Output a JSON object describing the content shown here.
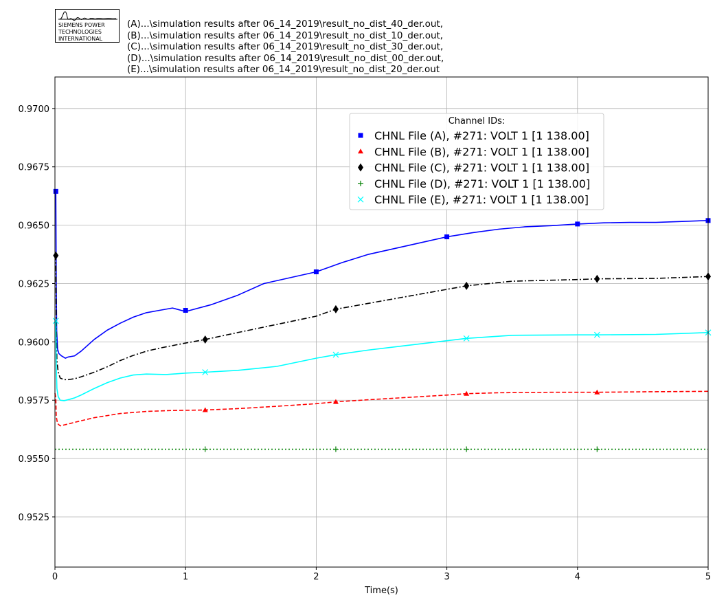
{
  "logo": {
    "text": "SIEMENS POWER\nTECHNOLOGIES\nINTERNATIONAL"
  },
  "file_list": [
    "(A)...\\simulation results after 06_14_2019\\result_no_dist_40_der.out,",
    "(B)...\\simulation results after 06_14_2019\\result_no_dist_10_der.out,",
    "(C)...\\simulation results after 06_14_2019\\result_no_dist_30_der.out,",
    "(D)...\\simulation results after 06_14_2019\\result_no_dist_00_der.out,",
    "(E)...\\simulation results after 06_14_2019\\result_no_dist_20_der.out"
  ],
  "chart_data": {
    "type": "line",
    "xlabel": "Time(s)",
    "ylabel": "",
    "xlim": [
      0,
      5
    ],
    "ylim": [
      0.95035,
      0.97135
    ],
    "xticks": [
      0,
      1,
      2,
      3,
      4,
      5
    ],
    "yticks": [
      0.9525,
      0.955,
      0.9575,
      0.96,
      0.9625,
      0.965,
      0.9675,
      0.97
    ],
    "ytick_labels": [
      "0.9525",
      "0.9550",
      "0.9575",
      "0.9600",
      "0.9625",
      "0.9650",
      "0.9675",
      "0.9700"
    ],
    "grid": true,
    "legend": {
      "title": "Channel IDs:",
      "placement": "upper-right"
    },
    "series": [
      {
        "name": "CHNL File (A), #271: VOLT 1 [1 138.00]",
        "color": "#0000ff",
        "dash": "solid",
        "marker": "square",
        "x": [
          0,
          0.0067,
          0.01,
          0.0133,
          0.02,
          0.03,
          0.05,
          0.08,
          0.1,
          0.15,
          0.2,
          0.3,
          0.4,
          0.5,
          0.6,
          0.7,
          0.8,
          0.9,
          1.0,
          1.2,
          1.4,
          1.6,
          1.8,
          2.0,
          2.2,
          2.4,
          2.6,
          2.8,
          3.0,
          3.2,
          3.4,
          3.6,
          3.8,
          4.0,
          4.2,
          4.4,
          4.6,
          4.8,
          5.0
        ],
        "y": [
          0.9664,
          0.9664,
          0.9625,
          0.9605,
          0.9597,
          0.9595,
          0.9594,
          0.9593,
          0.95935,
          0.9594,
          0.9596,
          0.9601,
          0.9605,
          0.9608,
          0.96106,
          0.96125,
          0.96135,
          0.96145,
          0.9613,
          0.9616,
          0.962,
          0.9625,
          0.96275,
          0.963,
          0.9634,
          0.96375,
          0.964,
          0.96425,
          0.9645,
          0.96468,
          0.96483,
          0.96493,
          0.96498,
          0.96505,
          0.9651,
          0.96512,
          0.96512,
          0.96516,
          0.9652
        ],
        "marker_x": [
          0.0067,
          1.0,
          2.0,
          3.0,
          4.0,
          5.0
        ],
        "marker_y": [
          0.96645,
          0.96135,
          0.963,
          0.9645,
          0.96505,
          0.9652
        ]
      },
      {
        "name": "CHNL File (B), #271: VOLT 1 [1 138.00]",
        "color": "#ff0000",
        "dash": "dashed",
        "marker": "triangle",
        "x": [
          0,
          0.0067,
          0.01,
          0.02,
          0.04,
          0.07,
          0.1,
          0.15,
          0.2,
          0.3,
          0.5,
          0.7,
          0.9,
          1.15,
          1.4,
          1.7,
          2.0,
          2.15,
          2.4,
          2.7,
          3.0,
          3.15,
          3.4,
          3.8,
          4.15,
          4.5,
          5.0
        ],
        "y": [
          0.9578,
          0.9576,
          0.9568,
          0.9565,
          0.9564,
          0.95644,
          0.95648,
          0.95655,
          0.95662,
          0.95675,
          0.95693,
          0.95702,
          0.95706,
          0.95708,
          0.95714,
          0.95724,
          0.95735,
          0.95743,
          0.95752,
          0.95762,
          0.95772,
          0.95778,
          0.95782,
          0.95784,
          0.95784,
          0.95786,
          0.95788
        ],
        "marker_x": [
          1.15,
          2.15,
          3.15,
          4.15
        ],
        "marker_y": [
          0.95708,
          0.95743,
          0.95778,
          0.95784
        ]
      },
      {
        "name": "CHNL File (C), #271: VOLT 1 [1 138.00]",
        "color": "#000000",
        "dash": "dashdot",
        "marker": "diamond",
        "x": [
          0,
          0.0067,
          0.01,
          0.015,
          0.025,
          0.04,
          0.07,
          0.1,
          0.15,
          0.2,
          0.3,
          0.4,
          0.5,
          0.6,
          0.7,
          0.8,
          1.0,
          1.15,
          1.4,
          1.7,
          2.0,
          2.15,
          2.4,
          2.7,
          3.0,
          3.15,
          3.5,
          4.0,
          4.15,
          4.6,
          5.0
        ],
        "y": [
          0.9637,
          0.9637,
          0.961,
          0.9592,
          0.9587,
          0.95845,
          0.95838,
          0.95838,
          0.95842,
          0.9585,
          0.9587,
          0.95893,
          0.9592,
          0.95942,
          0.9596,
          0.95973,
          0.95995,
          0.9601,
          0.9604,
          0.96075,
          0.9611,
          0.9614,
          0.96165,
          0.96195,
          0.96225,
          0.9624,
          0.9626,
          0.96267,
          0.9627,
          0.96272,
          0.9628
        ],
        "marker_x": [
          0.0067,
          1.15,
          2.15,
          3.15,
          4.15,
          5.0
        ],
        "marker_y": [
          0.9637,
          0.9601,
          0.9614,
          0.9624,
          0.9627,
          0.9628
        ]
      },
      {
        "name": "CHNL File (D), #271: VOLT 1 [1 138.00]",
        "color": "#008000",
        "dash": "dotted",
        "marker": "plus",
        "x": [
          0,
          5.0
        ],
        "y": [
          0.9554,
          0.9554
        ],
        "marker_x": [
          1.15,
          2.15,
          3.15,
          4.15
        ],
        "marker_y": [
          0.9554,
          0.9554,
          0.9554,
          0.9554
        ]
      },
      {
        "name": "CHNL File (E), #271: VOLT 1 [1 138.00]",
        "color": "#00ffff",
        "dash": "solid",
        "marker": "x",
        "x": [
          0,
          0.0067,
          0.01,
          0.015,
          0.025,
          0.04,
          0.07,
          0.1,
          0.15,
          0.2,
          0.3,
          0.4,
          0.5,
          0.6,
          0.7,
          0.85,
          1.0,
          1.15,
          1.4,
          1.7,
          2.0,
          2.15,
          2.4,
          2.7,
          3.0,
          3.15,
          3.5,
          4.0,
          4.15,
          4.6,
          5.0
        ],
        "y": [
          0.9609,
          0.9609,
          0.959,
          0.958,
          0.95765,
          0.9575,
          0.95748,
          0.95752,
          0.9576,
          0.95772,
          0.958,
          0.95825,
          0.95845,
          0.95858,
          0.95862,
          0.9586,
          0.95866,
          0.9587,
          0.95878,
          0.95895,
          0.9593,
          0.95945,
          0.95965,
          0.95985,
          0.96005,
          0.96015,
          0.96028,
          0.9603,
          0.9603,
          0.96032,
          0.9604
        ],
        "marker_x": [
          0.0067,
          1.15,
          2.15,
          3.15,
          4.15,
          5.0
        ],
        "marker_y": [
          0.9609,
          0.9587,
          0.95945,
          0.96015,
          0.9603,
          0.9604
        ]
      }
    ]
  }
}
